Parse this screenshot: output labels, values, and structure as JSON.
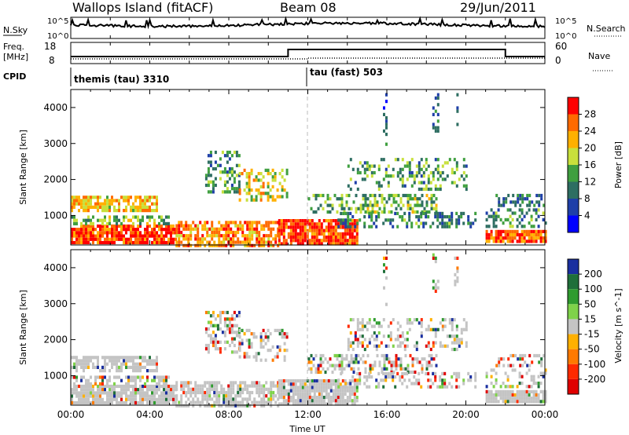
{
  "header": {
    "station": "Wallops Island (fitACF)",
    "beam": "Beam 08",
    "date": "29/Jun/2011"
  },
  "strip_labels": {
    "nsky": "N.Sky",
    "nsky_hi": "10^5",
    "nsky_lo": "10^0",
    "nsearch": "N.Search",
    "freq_line1": "Freq.",
    "freq_line2": "[MHz]",
    "freq_hi": "18",
    "freq_lo": "8",
    "nave": "Nave",
    "nave_hi": "60",
    "nave_lo": "0",
    "cpid": "CPID",
    "cpid_mode1": "themis (tau) 3310",
    "cpid_mode2": "tau (fast) 503"
  },
  "chart_data": [
    {
      "type": "heatmap",
      "name": "power",
      "ylabel": "Slant Range [km]",
      "yticks": [
        "1000",
        "2000",
        "3000",
        "4000"
      ],
      "ylim": [
        180,
        4500
      ],
      "colorbar_label": "Power [dB]",
      "colorbar_ticks": [
        "4",
        "8",
        "12",
        "16",
        "20",
        "24",
        "28"
      ],
      "colorbar_colors": [
        "#0000ff",
        "#1f3fa8",
        "#2e6e62",
        "#3f9f3f",
        "#c8e03c",
        "#ffb000",
        "#ff6a00",
        "#ff0000"
      ]
    },
    {
      "type": "heatmap",
      "name": "velocity",
      "ylabel": "Slant Range [km]",
      "yticks": [
        "1000",
        "2000",
        "3000",
        "4000"
      ],
      "ylim": [
        180,
        4500
      ],
      "colorbar_label": "Velocity [m s^-1]",
      "colorbar_ticks": [
        "200",
        "100",
        "50",
        "15",
        "-15",
        "-50",
        "-100",
        "-200"
      ],
      "colorbar_colors": [
        "#1a2fa0",
        "#1f6f3a",
        "#2f9b2f",
        "#7fd24a",
        "#c4c4c4",
        "#ffb000",
        "#ff7a00",
        "#ff2a00",
        "#e00000"
      ],
      "xlabel": "Time UT",
      "xticks": [
        "00:00",
        "04:00",
        "08:00",
        "12:00",
        "16:00",
        "20:00",
        "00:00"
      ]
    }
  ],
  "colors": {
    "ground_scatter": "#c4c4c4",
    "frame": "#000000"
  }
}
